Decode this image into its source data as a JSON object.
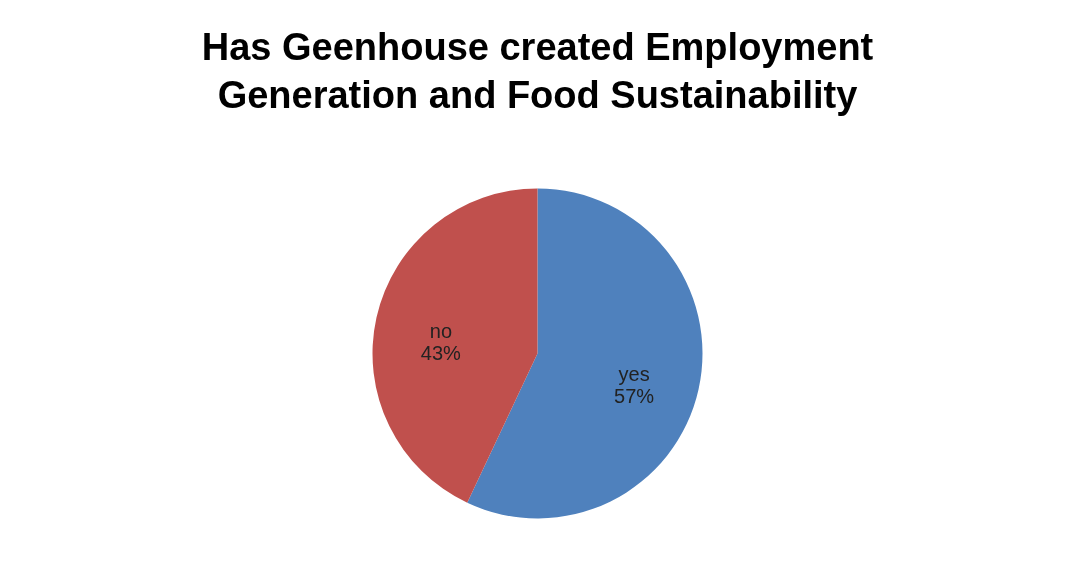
{
  "chart_data": {
    "type": "pie",
    "title": "Has Geenhouse created Employment Generation and Food Sustainability",
    "categories": [
      "yes",
      "no"
    ],
    "values": [
      57,
      43
    ],
    "colors": [
      "#4f81bd",
      "#c0504d"
    ],
    "value_labels": [
      "57%",
      "43%"
    ],
    "legend": false
  }
}
